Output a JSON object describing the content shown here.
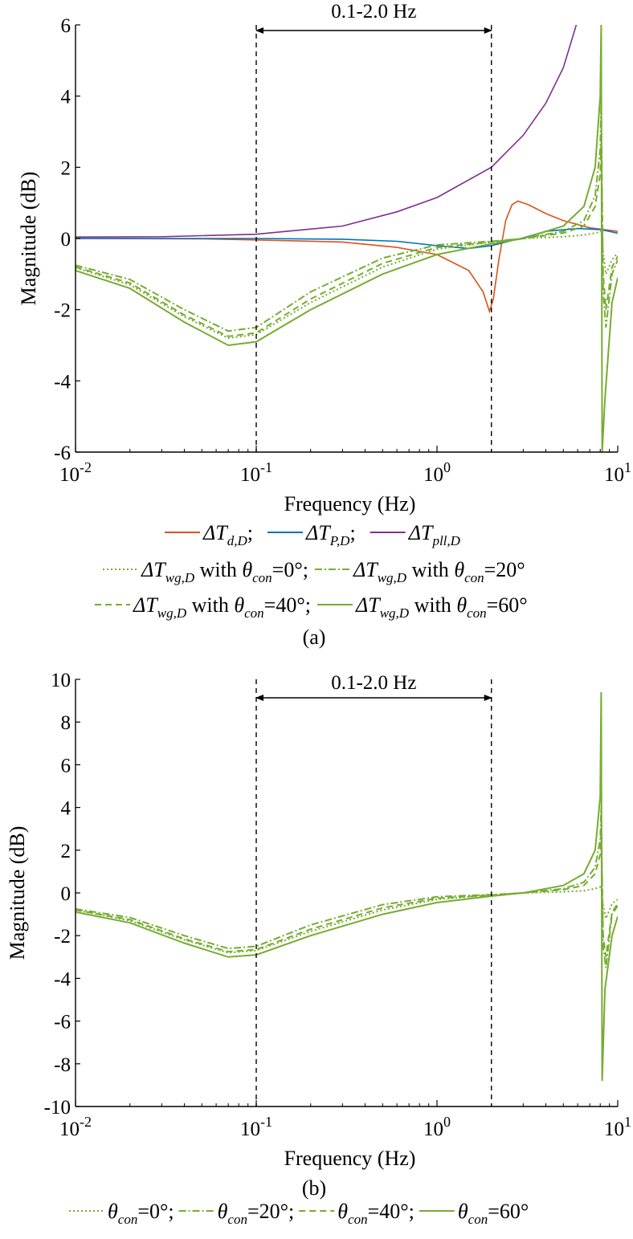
{
  "chart_data": [
    {
      "type": "line",
      "panel_label": "(a)",
      "xlabel": "Frequency (Hz)",
      "ylabel": "Magnitude (dB)",
      "xscale": "log",
      "xlim": [
        0.01,
        10
      ],
      "ylim": [
        -6,
        6
      ],
      "x_ticks": [
        0.01,
        0.1,
        1,
        10
      ],
      "x_tick_labels": [
        {
          "base": "10",
          "exp": "-2"
        },
        {
          "base": "10",
          "exp": "-1"
        },
        {
          "base": "10",
          "exp": "0"
        },
        {
          "base": "10",
          "exp": "1"
        }
      ],
      "y_ticks": [
        -6,
        -4,
        -2,
        0,
        2,
        4,
        6
      ],
      "y_tick_labels": [
        "-6",
        "-4",
        "-2",
        "0",
        "2",
        "4",
        "6"
      ],
      "band": {
        "from": 0.1,
        "to": 2.0,
        "label": "0.1-2.0 Hz"
      },
      "legend_placement": "bottom",
      "series": [
        {
          "key": "d",
          "color": "#d95319",
          "style": "solid",
          "legend": {
            "pre": "ΔT",
            "sub": "d,D",
            "post": ";"
          },
          "points": [
            [
              0.01,
              0
            ],
            [
              0.05,
              -0.01
            ],
            [
              0.1,
              -0.04
            ],
            [
              0.3,
              -0.1
            ],
            [
              0.6,
              -0.25
            ],
            [
              1,
              -0.45
            ],
            [
              1.5,
              -0.9
            ],
            [
              1.8,
              -1.5
            ],
            [
              1.95,
              -2.05
            ],
            [
              2.05,
              -1.7
            ],
            [
              2.2,
              -0.6
            ],
            [
              2.4,
              0.5
            ],
            [
              2.6,
              0.95
            ],
            [
              2.8,
              1.05
            ],
            [
              3.2,
              0.95
            ],
            [
              4,
              0.7
            ],
            [
              5,
              0.5
            ],
            [
              7,
              0.3
            ],
            [
              10,
              0.2
            ]
          ]
        },
        {
          "key": "p",
          "color": "#0072bd",
          "style": "solid",
          "legend": {
            "pre": "ΔT",
            "sub": "P,D",
            "post": ";"
          },
          "points": [
            [
              0.01,
              0
            ],
            [
              0.1,
              0
            ],
            [
              0.3,
              -0.02
            ],
            [
              0.6,
              -0.08
            ],
            [
              1,
              -0.2
            ],
            [
              1.5,
              -0.28
            ],
            [
              2,
              -0.2
            ],
            [
              3,
              0.02
            ],
            [
              4,
              0.2
            ],
            [
              6,
              0.28
            ],
            [
              8,
              0.25
            ],
            [
              10,
              0.15
            ]
          ]
        },
        {
          "key": "pll",
          "color": "#7e2f8e",
          "style": "solid",
          "legend": {
            "pre": "ΔT",
            "sub": "pll,D",
            "post": ""
          },
          "points": [
            [
              0.01,
              0.04
            ],
            [
              0.03,
              0.05
            ],
            [
              0.1,
              0.12
            ],
            [
              0.3,
              0.35
            ],
            [
              0.6,
              0.75
            ],
            [
              1,
              1.15
            ],
            [
              2,
              2.0
            ],
            [
              3,
              2.9
            ],
            [
              4,
              3.8
            ],
            [
              5,
              4.8
            ],
            [
              5.9,
              6
            ]
          ]
        },
        {
          "key": "wg0",
          "color": "#77ac30",
          "style": "dotted",
          "legend": {
            "pre": "ΔT",
            "sub": "wg,D",
            "mid": " with ",
            "theta": "θ",
            "theta_sub": "con",
            "post": "=0°;"
          },
          "points": [
            [
              0.01,
              -0.82
            ],
            [
              0.02,
              -1.3
            ],
            [
              0.04,
              -2.2
            ],
            [
              0.07,
              -2.8
            ],
            [
              0.1,
              -2.7
            ],
            [
              0.2,
              -1.8
            ],
            [
              0.5,
              -0.8
            ],
            [
              1,
              -0.3
            ],
            [
              2,
              -0.1
            ],
            [
              3,
              0
            ],
            [
              5,
              0.05
            ],
            [
              6.5,
              0.1
            ],
            [
              7.5,
              0.15
            ],
            [
              8.1,
              0.2
            ],
            [
              8.3,
              -0.4
            ],
            [
              8.6,
              -1.0
            ],
            [
              9.3,
              -0.6
            ],
            [
              10,
              -0.4
            ]
          ]
        },
        {
          "key": "wg20",
          "color": "#77ac30",
          "style": "dashdot",
          "legend": {
            "pre": "ΔT",
            "sub": "wg,D",
            "mid": " with ",
            "theta": "θ",
            "theta_sub": "con",
            "post": "=20°"
          },
          "points": [
            [
              0.01,
              -0.75
            ],
            [
              0.02,
              -1.15
            ],
            [
              0.04,
              -2.0
            ],
            [
              0.07,
              -2.6
            ],
            [
              0.1,
              -2.5
            ],
            [
              0.2,
              -1.5
            ],
            [
              0.5,
              -0.55
            ],
            [
              1,
              -0.18
            ],
            [
              2,
              -0.08
            ],
            [
              3,
              0
            ],
            [
              5,
              0.2
            ],
            [
              6.5,
              0.5
            ],
            [
              7.5,
              1.2
            ],
            [
              8,
              2.5
            ],
            [
              8.1,
              3.8
            ],
            [
              8.3,
              -1.5
            ],
            [
              8.6,
              -2.5
            ],
            [
              9.3,
              -1.0
            ],
            [
              10,
              -0.6
            ]
          ]
        },
        {
          "key": "wg40",
          "color": "#77ac30",
          "style": "dashed",
          "legend": {
            "pre": "ΔT",
            "sub": "wg,D",
            "mid": " with ",
            "theta": "θ",
            "theta_sub": "con",
            "post": "=40°;"
          },
          "points": [
            [
              0.01,
              -0.8
            ],
            [
              0.02,
              -1.25
            ],
            [
              0.04,
              -2.15
            ],
            [
              0.07,
              -2.75
            ],
            [
              0.1,
              -2.65
            ],
            [
              0.2,
              -1.7
            ],
            [
              0.5,
              -0.7
            ],
            [
              1,
              -0.25
            ],
            [
              2,
              -0.1
            ],
            [
              3,
              0
            ],
            [
              5,
              0.15
            ],
            [
              6.5,
              0.35
            ],
            [
              7.5,
              0.9
            ],
            [
              8,
              1.8
            ],
            [
              8.1,
              2.6
            ],
            [
              8.3,
              -1.0
            ],
            [
              8.6,
              -2.0
            ],
            [
              9.3,
              -0.8
            ],
            [
              10,
              -0.5
            ]
          ]
        },
        {
          "key": "wg60",
          "color": "#77ac30",
          "style": "solid",
          "legend": {
            "pre": "ΔT",
            "sub": "wg,D",
            "mid": " with ",
            "theta": "θ",
            "theta_sub": "con",
            "post": "=60°"
          },
          "points": [
            [
              0.01,
              -0.9
            ],
            [
              0.02,
              -1.4
            ],
            [
              0.04,
              -2.35
            ],
            [
              0.07,
              -3.0
            ],
            [
              0.1,
              -2.9
            ],
            [
              0.2,
              -2.0
            ],
            [
              0.5,
              -1.0
            ],
            [
              1,
              -0.45
            ],
            [
              2,
              -0.15
            ],
            [
              3,
              0
            ],
            [
              5,
              0.35
            ],
            [
              6.5,
              0.9
            ],
            [
              7.5,
              2.0
            ],
            [
              8,
              4.0
            ],
            [
              8.1,
              6.0
            ],
            [
              8.2,
              -6.0
            ],
            [
              8.5,
              -4.5
            ],
            [
              9.3,
              -1.8
            ],
            [
              10,
              -1.1
            ]
          ]
        }
      ]
    },
    {
      "type": "line",
      "panel_label": "(b)",
      "xlabel": "Frequency (Hz)",
      "ylabel": "Magnitude (dB)",
      "xscale": "log",
      "xlim": [
        0.01,
        10
      ],
      "ylim": [
        -10,
        10
      ],
      "x_ticks": [
        0.01,
        0.1,
        1,
        10
      ],
      "x_tick_labels": [
        {
          "base": "10",
          "exp": "-2"
        },
        {
          "base": "10",
          "exp": "-1"
        },
        {
          "base": "10",
          "exp": "0"
        },
        {
          "base": "10",
          "exp": "1"
        }
      ],
      "y_ticks": [
        -10,
        -8,
        -6,
        -4,
        -2,
        0,
        2,
        4,
        6,
        8,
        10
      ],
      "y_tick_labels": [
        "-10",
        "-8",
        "-6",
        "-4",
        "-2",
        "0",
        "2",
        "4",
        "6",
        "8",
        "10"
      ],
      "band": {
        "from": 0.1,
        "to": 2.0,
        "label": "0.1-2.0 Hz"
      },
      "legend_placement": "bottom",
      "series": [
        {
          "key": "b0",
          "color": "#77ac30",
          "style": "dotted",
          "legend": {
            "theta": "θ",
            "theta_sub": "con",
            "post": "=0°;"
          },
          "points": [
            [
              0.01,
              -0.8
            ],
            [
              0.02,
              -1.3
            ],
            [
              0.04,
              -2.2
            ],
            [
              0.07,
              -2.8
            ],
            [
              0.1,
              -2.7
            ],
            [
              0.2,
              -1.8
            ],
            [
              0.5,
              -0.8
            ],
            [
              1,
              -0.3
            ],
            [
              2,
              -0.1
            ],
            [
              3,
              0
            ],
            [
              5,
              0.05
            ],
            [
              6.5,
              0.1
            ],
            [
              7.5,
              0.2
            ],
            [
              8.1,
              0.3
            ],
            [
              8.3,
              -0.6
            ],
            [
              8.6,
              -1.2
            ],
            [
              9.3,
              -0.5
            ],
            [
              10,
              -0.3
            ]
          ]
        },
        {
          "key": "b20",
          "color": "#77ac30",
          "style": "dashdot",
          "legend": {
            "theta": "θ",
            "theta_sub": "con",
            "post": "=20°;"
          },
          "points": [
            [
              0.01,
              -0.75
            ],
            [
              0.02,
              -1.15
            ],
            [
              0.04,
              -2.0
            ],
            [
              0.07,
              -2.6
            ],
            [
              0.1,
              -2.5
            ],
            [
              0.2,
              -1.5
            ],
            [
              0.5,
              -0.55
            ],
            [
              1,
              -0.18
            ],
            [
              2,
              -0.08
            ],
            [
              3,
              0
            ],
            [
              5,
              0.2
            ],
            [
              6.5,
              0.5
            ],
            [
              7.5,
              1.2
            ],
            [
              8,
              2.5
            ],
            [
              8.1,
              4.0
            ],
            [
              8.3,
              -2.5
            ],
            [
              8.6,
              -3.5
            ],
            [
              9.3,
              -1.0
            ],
            [
              10,
              -0.6
            ]
          ]
        },
        {
          "key": "b40",
          "color": "#77ac30",
          "style": "dashed",
          "legend": {
            "theta": "θ",
            "theta_sub": "con",
            "post": "=40°;"
          },
          "points": [
            [
              0.01,
              -0.8
            ],
            [
              0.02,
              -1.25
            ],
            [
              0.04,
              -2.15
            ],
            [
              0.07,
              -2.75
            ],
            [
              0.1,
              -2.65
            ],
            [
              0.2,
              -1.7
            ],
            [
              0.5,
              -0.7
            ],
            [
              1,
              -0.25
            ],
            [
              2,
              -0.1
            ],
            [
              3,
              0
            ],
            [
              5,
              0.15
            ],
            [
              6.5,
              0.35
            ],
            [
              7.5,
              0.9
            ],
            [
              8,
              1.8
            ],
            [
              8.1,
              2.8
            ],
            [
              8.3,
              -2.0
            ],
            [
              8.6,
              -3.0
            ],
            [
              9.3,
              -0.9
            ],
            [
              10,
              -0.5
            ]
          ]
        },
        {
          "key": "b60",
          "color": "#77ac30",
          "style": "solid",
          "legend": {
            "theta": "θ",
            "theta_sub": "con",
            "post": "=60°"
          },
          "points": [
            [
              0.01,
              -0.9
            ],
            [
              0.02,
              -1.4
            ],
            [
              0.04,
              -2.35
            ],
            [
              0.07,
              -3.0
            ],
            [
              0.1,
              -2.9
            ],
            [
              0.2,
              -2.0
            ],
            [
              0.5,
              -1.0
            ],
            [
              1,
              -0.45
            ],
            [
              2,
              -0.15
            ],
            [
              3,
              0
            ],
            [
              5,
              0.35
            ],
            [
              6.5,
              0.9
            ],
            [
              7.5,
              2.0
            ],
            [
              8,
              4.5
            ],
            [
              8.1,
              9.4
            ],
            [
              8.2,
              -8.8
            ],
            [
              8.5,
              -4.5
            ],
            [
              9.3,
              -2.0
            ],
            [
              10,
              -1.1
            ]
          ]
        }
      ]
    }
  ]
}
